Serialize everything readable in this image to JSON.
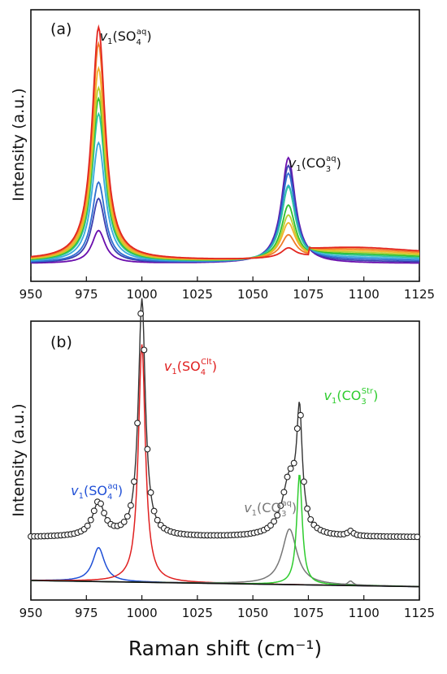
{
  "chart_data": [
    {
      "panel": "(a)",
      "type": "line",
      "xlabel": "",
      "ylabel": "Intensity (a.u.)",
      "xlim": [
        950,
        1125
      ],
      "xticks": [
        "950",
        "975",
        "1000",
        "1025",
        "1050",
        "1075",
        "1100",
        "1125"
      ],
      "grid": false,
      "annotations": [
        {
          "name": "so4-aq",
          "prefix": "v",
          "sub1": "1",
          "open": "(SO",
          "subscript": "4",
          "superscript": "aq",
          "close": ")",
          "color": "#111111",
          "x": 981
        },
        {
          "name": "co3-aq",
          "prefix": "v",
          "sub1": "1",
          "open": "(CO",
          "subscript": "3",
          "superscript": "aq",
          "close": ")",
          "color": "#111111",
          "x": 1066
        }
      ],
      "peaks": [
        {
          "center": 980.5,
          "width": 3.6,
          "shape": "lorentzian"
        },
        {
          "center": 1066,
          "width": 3.8,
          "shape": "lorentzian"
        }
      ],
      "series": [
        {
          "color": "#6a0dad",
          "sulfate_peak": 0.31,
          "carbonate_peak": 1.0
        },
        {
          "color": "#3a3fb0",
          "sulfate_peak": 0.61,
          "carbonate_peak": 0.92
        },
        {
          "color": "#2f6fd0",
          "sulfate_peak": 0.76,
          "carbonate_peak": 0.84
        },
        {
          "color": "#39a9dc",
          "sulfate_peak": 1.13,
          "carbonate_peak": 0.72
        },
        {
          "color": "#2ec4a0",
          "sulfate_peak": 1.4,
          "carbonate_peak": 0.7
        },
        {
          "color": "#2fbf2f",
          "sulfate_peak": 1.54,
          "carbonate_peak": 0.52
        },
        {
          "color": "#b8d030",
          "sulfate_peak": 1.64,
          "carbonate_peak": 0.42
        },
        {
          "color": "#f2b22a",
          "sulfate_peak": 1.82,
          "carbonate_peak": 0.34
        },
        {
          "color": "#f07b2a",
          "sulfate_peak": 2.05,
          "carbonate_peak": 0.22
        },
        {
          "color": "#e3261f",
          "sulfate_peak": 2.2,
          "carbonate_peak": 0.09
        }
      ]
    },
    {
      "panel": "(b)",
      "type": "line",
      "xlabel": "Raman shift (cm⁻¹)",
      "ylabel": "Intensity (a.u.)",
      "xlim": [
        950,
        1125
      ],
      "xticks": [
        "950",
        "975",
        "1000",
        "1025",
        "1050",
        "1075",
        "1100",
        "1125"
      ],
      "grid": false,
      "annotations": [
        {
          "name": "so4-aq",
          "prefix": "v",
          "sub1": "1",
          "open": "(SO",
          "subscript": "4",
          "superscript": "aq",
          "close": ")",
          "color": "#1f4fd6",
          "x": 968
        },
        {
          "name": "so4-clt",
          "prefix": "v",
          "sub1": "1",
          "open": "(SO",
          "subscript": "4",
          "superscript": "Clt",
          "close": ")",
          "color": "#e02020",
          "x": 1010
        },
        {
          "name": "co3-aq",
          "prefix": "v",
          "sub1": "1",
          "open": "(CO",
          "subscript": "3",
          "superscript": "aq",
          "close": ")",
          "color": "#777777",
          "x": 1046
        },
        {
          "name": "co3-str",
          "prefix": "v",
          "sub1": "1",
          "open": "(CO",
          "subscript": "3",
          "superscript": "Str",
          "close": ")",
          "color": "#2ecc2e",
          "x": 1082
        }
      ],
      "components": [
        {
          "name": "SO4 aq",
          "color": "#1f4fd6",
          "center": 980.5,
          "width": 3.2,
          "height": 0.22
        },
        {
          "name": "SO4 Clt",
          "color": "#e02020",
          "center": 1000,
          "width": 1.9,
          "height": 1.54
        },
        {
          "name": "CO3 aq",
          "color": "#777777",
          "center": 1066.5,
          "width": 4.0,
          "height": 0.36
        },
        {
          "name": "CO3 Str",
          "color": "#2ecc2e",
          "center": 1071,
          "width": 1.5,
          "height": 0.72
        },
        {
          "name": "minor",
          "color": "#777777",
          "center": 1094,
          "width": 1.5,
          "height": 0.03
        }
      ],
      "background_line": {
        "color": "#111111",
        "y_start": 0.0,
        "y_end": -0.04
      },
      "fit_curve": {
        "color": "#333333",
        "offset": 0.28
      },
      "measured_points": {
        "marker": "open-circle",
        "step": 1.5
      }
    }
  ]
}
